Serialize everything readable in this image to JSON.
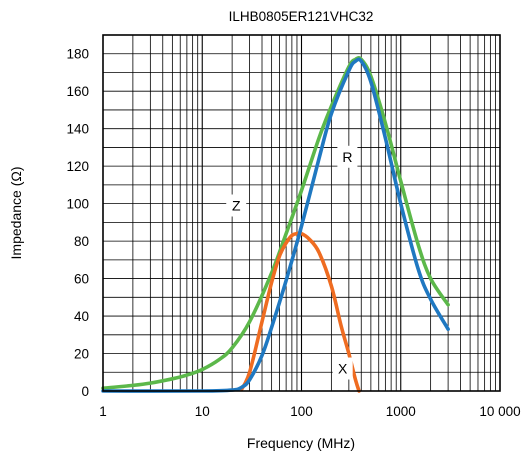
{
  "chart_data": {
    "type": "line",
    "title": "ILHB0805ER121VHC32",
    "xlabel": "Frequency (MHz)",
    "ylabel": "Impedance (Ω)",
    "x_scale": "log",
    "xlim": [
      1,
      10000
    ],
    "ylim": [
      0,
      190
    ],
    "grid": true,
    "x_ticks": [
      1,
      10,
      100,
      1000,
      10000
    ],
    "x_tick_labels": [
      "1",
      "10",
      "100",
      "1000",
      "10 000"
    ],
    "y_ticks": [
      0,
      20,
      40,
      60,
      80,
      100,
      120,
      140,
      160,
      180
    ],
    "y_tick_labels": [
      "0",
      "20",
      "40",
      "60",
      "80",
      "100",
      "120",
      "140",
      "160",
      "180"
    ],
    "series": [
      {
        "name": "Z",
        "color": "#5cb84a",
        "x": [
          1,
          2,
          3,
          5,
          7,
          10,
          15,
          20,
          30,
          50,
          70,
          100,
          150,
          200,
          300,
          350,
          400,
          500,
          700,
          1000,
          1500,
          2000,
          3000
        ],
        "y": [
          1.5,
          3,
          4.2,
          6.5,
          8.5,
          11.5,
          17,
          23,
          37,
          63,
          84,
          107,
          135,
          152,
          173,
          177,
          177,
          168,
          143,
          112,
          78,
          60,
          46
        ]
      },
      {
        "name": "R",
        "color": "#1f78c1",
        "x": [
          1,
          10,
          20,
          25,
          30,
          40,
          50,
          70,
          100,
          150,
          200,
          300,
          350,
          400,
          500,
          700,
          1000,
          1500,
          2000,
          3000
        ],
        "y": [
          0,
          0,
          0.5,
          2,
          6,
          19,
          34,
          59,
          88,
          124,
          148,
          171,
          176,
          176,
          165,
          135,
          100,
          65,
          49,
          33
        ]
      },
      {
        "name": "X",
        "color": "#ef6c21",
        "x": [
          25,
          30,
          40,
          50,
          60,
          70,
          80,
          90,
          100,
          120,
          150,
          200,
          250,
          300,
          350,
          380
        ],
        "y": [
          1,
          10,
          37,
          58,
          72,
          79,
          83,
          84,
          84,
          81,
          74,
          56,
          35,
          20,
          6,
          0
        ]
      }
    ],
    "curve_labels": [
      {
        "text": "Z",
        "x": 22,
        "y": 99
      },
      {
        "text": "R",
        "x": 290,
        "y": 125
      },
      {
        "text": "X",
        "x": 260,
        "y": 12
      }
    ]
  }
}
